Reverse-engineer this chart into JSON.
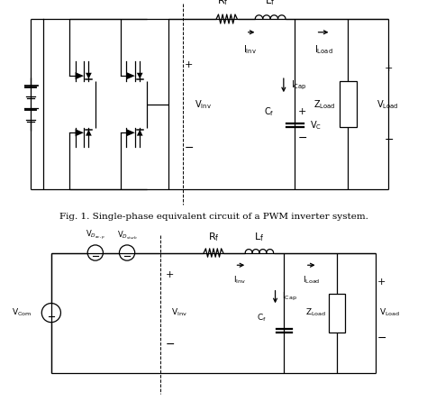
{
  "title": "Fig. 1. Single-phase equivalent circuit of a PWM inverter system.",
  "bg_color": "#ffffff",
  "fig_width": 4.74,
  "fig_height": 4.45,
  "dpi": 100
}
